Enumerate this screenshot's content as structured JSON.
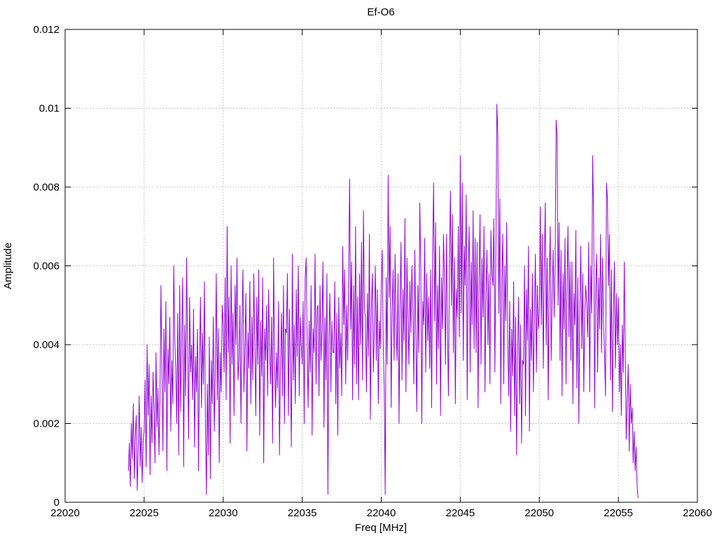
{
  "page": {
    "background": "#ffffff"
  },
  "chart_data": {
    "type": "line",
    "title": "Ef-O6",
    "xlabel": "Freq [MHz]",
    "ylabel": "Amplitude",
    "xlim": [
      22020,
      22060
    ],
    "ylim": [
      0,
      0.012
    ],
    "x_tick_values": [
      22020,
      22025,
      22030,
      22035,
      22040,
      22045,
      22050,
      22055,
      22060
    ],
    "x_tick_labels": [
      "22020",
      "22025",
      "22030",
      "22035",
      "22040",
      "22045",
      "22050",
      "22055",
      "22060"
    ],
    "y_tick_values": [
      0,
      0.002,
      0.004,
      0.006,
      0.008,
      0.01,
      0.012
    ],
    "y_tick_labels": [
      "0",
      "0.002",
      "0.004",
      "0.006",
      "0.008",
      "0.01",
      "0.012"
    ],
    "grid": "dotted",
    "grid_color": "#a0a0a0",
    "axis_color": "#000000",
    "legend": "none",
    "line_color": "#9400d3",
    "series": [
      {
        "name": "Ef-O6",
        "x_start": 22024.0,
        "x_step": 0.0625,
        "y_unit": 0.0001,
        "y_values": [
          8,
          15,
          4,
          20,
          11,
          25,
          6,
          17,
          22,
          3,
          14,
          27,
          9,
          19,
          5,
          16,
          18,
          31,
          9,
          40,
          22,
          35,
          7,
          27,
          15,
          33,
          24,
          10,
          38,
          19,
          29,
          12,
          26,
          55,
          33,
          13,
          44,
          28,
          51,
          8,
          39,
          30,
          47,
          18,
          36,
          25,
          60,
          41,
          34,
          20,
          48,
          12,
          55,
          23,
          41,
          57,
          9,
          45,
          27,
          62,
          38,
          16,
          52,
          33,
          40,
          26,
          49,
          14,
          37,
          28,
          44,
          8,
          35,
          52,
          24,
          43,
          30,
          56,
          21,
          2,
          30,
          12,
          42,
          6,
          36,
          25,
          47,
          18,
          33,
          58,
          26,
          44,
          10,
          38,
          28,
          50,
          45,
          33,
          57,
          26,
          70,
          38,
          52,
          15,
          60,
          35,
          48,
          22,
          55,
          40,
          62,
          31,
          36,
          50,
          20,
          45,
          59,
          28,
          39,
          53,
          13,
          43,
          34,
          56,
          25,
          47,
          31,
          58,
          40,
          22,
          52,
          35,
          59,
          17,
          46,
          32,
          57,
          10,
          44,
          36,
          50,
          27,
          54,
          38,
          30,
          47,
          15,
          62,
          36,
          24,
          38,
          29,
          51,
          12,
          35,
          48,
          27,
          55,
          20,
          44,
          43,
          58,
          22,
          49,
          35,
          14,
          63,
          31,
          45,
          25,
          54,
          37,
          60,
          27,
          47,
          40,
          35,
          51,
          20,
          57,
          62,
          40,
          24,
          46,
          33,
          55,
          17,
          44,
          38,
          63,
          30,
          49,
          50,
          27,
          55,
          36,
          44,
          61,
          19,
          47,
          31,
          58,
          2,
          42,
          53,
          28,
          46,
          38,
          38,
          56,
          25,
          48,
          17,
          52,
          34,
          43,
          27,
          65,
          45,
          59,
          30,
          50,
          36,
          57,
          82,
          44,
          61,
          26,
          55,
          35,
          70,
          30,
          52,
          26,
          58,
          40,
          66,
          31,
          74,
          49,
          47,
          28,
          53,
          37,
          68,
          21,
          49,
          58,
          33,
          44,
          60,
          36,
          54,
          25,
          46,
          39,
          55,
          64,
          40,
          29,
          2,
          57,
          35,
          83,
          52,
          70,
          24,
          48,
          59,
          36,
          63,
          45,
          36,
          58,
          20,
          50,
          66,
          31,
          54,
          41,
          72,
          28,
          62,
          47,
          35,
          56,
          43,
          60,
          49,
          30,
          64,
          42,
          23,
          55,
          38,
          76,
          60,
          20,
          51,
          45,
          67,
          33,
          58,
          41,
          52,
          34,
          59,
          24,
          63,
          81,
          46,
          71,
          30,
          55,
          39,
          65,
          22,
          57,
          44,
          68,
          57,
          35,
          68,
          44,
          27,
          60,
          79,
          50,
          73,
          38,
          62,
          25,
          54,
          47,
          70,
          42,
          88,
          48,
          81,
          36,
          65,
          55,
          78,
          26,
          59,
          70,
          33,
          61,
          45,
          74,
          39,
          67,
          38,
          66,
          24,
          57,
          73,
          35,
          62,
          47,
          70,
          28,
          53,
          64,
          40,
          58,
          30,
          69,
          58,
          55,
          72,
          33,
          63,
          101,
          93,
          48,
          77,
          25,
          56,
          68,
          30,
          60,
          46,
          71,
          42,
          27,
          51,
          18,
          44,
          32,
          56,
          22,
          47,
          12,
          38,
          52,
          25,
          45,
          15,
          36,
          35,
          60,
          22,
          54,
          41,
          65,
          18,
          49,
          36,
          58,
          28,
          46,
          63,
          33,
          55,
          44,
          48,
          75,
          45,
          68,
          34,
          59,
          76,
          40,
          62,
          26,
          55,
          70,
          36,
          52,
          64,
          47,
          60,
          97,
          93,
          50,
          71,
          36,
          64,
          27,
          58,
          44,
          67,
          30,
          55,
          70,
          42,
          61,
          36,
          61,
          25,
          53,
          45,
          69,
          29,
          57,
          20,
          50,
          65,
          39,
          58,
          28,
          48,
          55,
          50,
          42,
          66,
          28,
          60,
          48,
          88,
          72,
          24,
          54,
          63,
          33,
          57,
          44,
          68,
          38,
          62,
          45,
          38,
          27,
          81,
          77,
          55,
          68,
          31,
          59,
          23,
          47,
          61,
          34,
          53,
          40,
          52,
          28,
          40,
          22,
          45,
          33,
          61,
          38,
          16,
          26,
          35,
          13,
          30,
          20,
          24,
          10,
          18,
          8,
          14,
          4,
          1
        ]
      }
    ]
  }
}
